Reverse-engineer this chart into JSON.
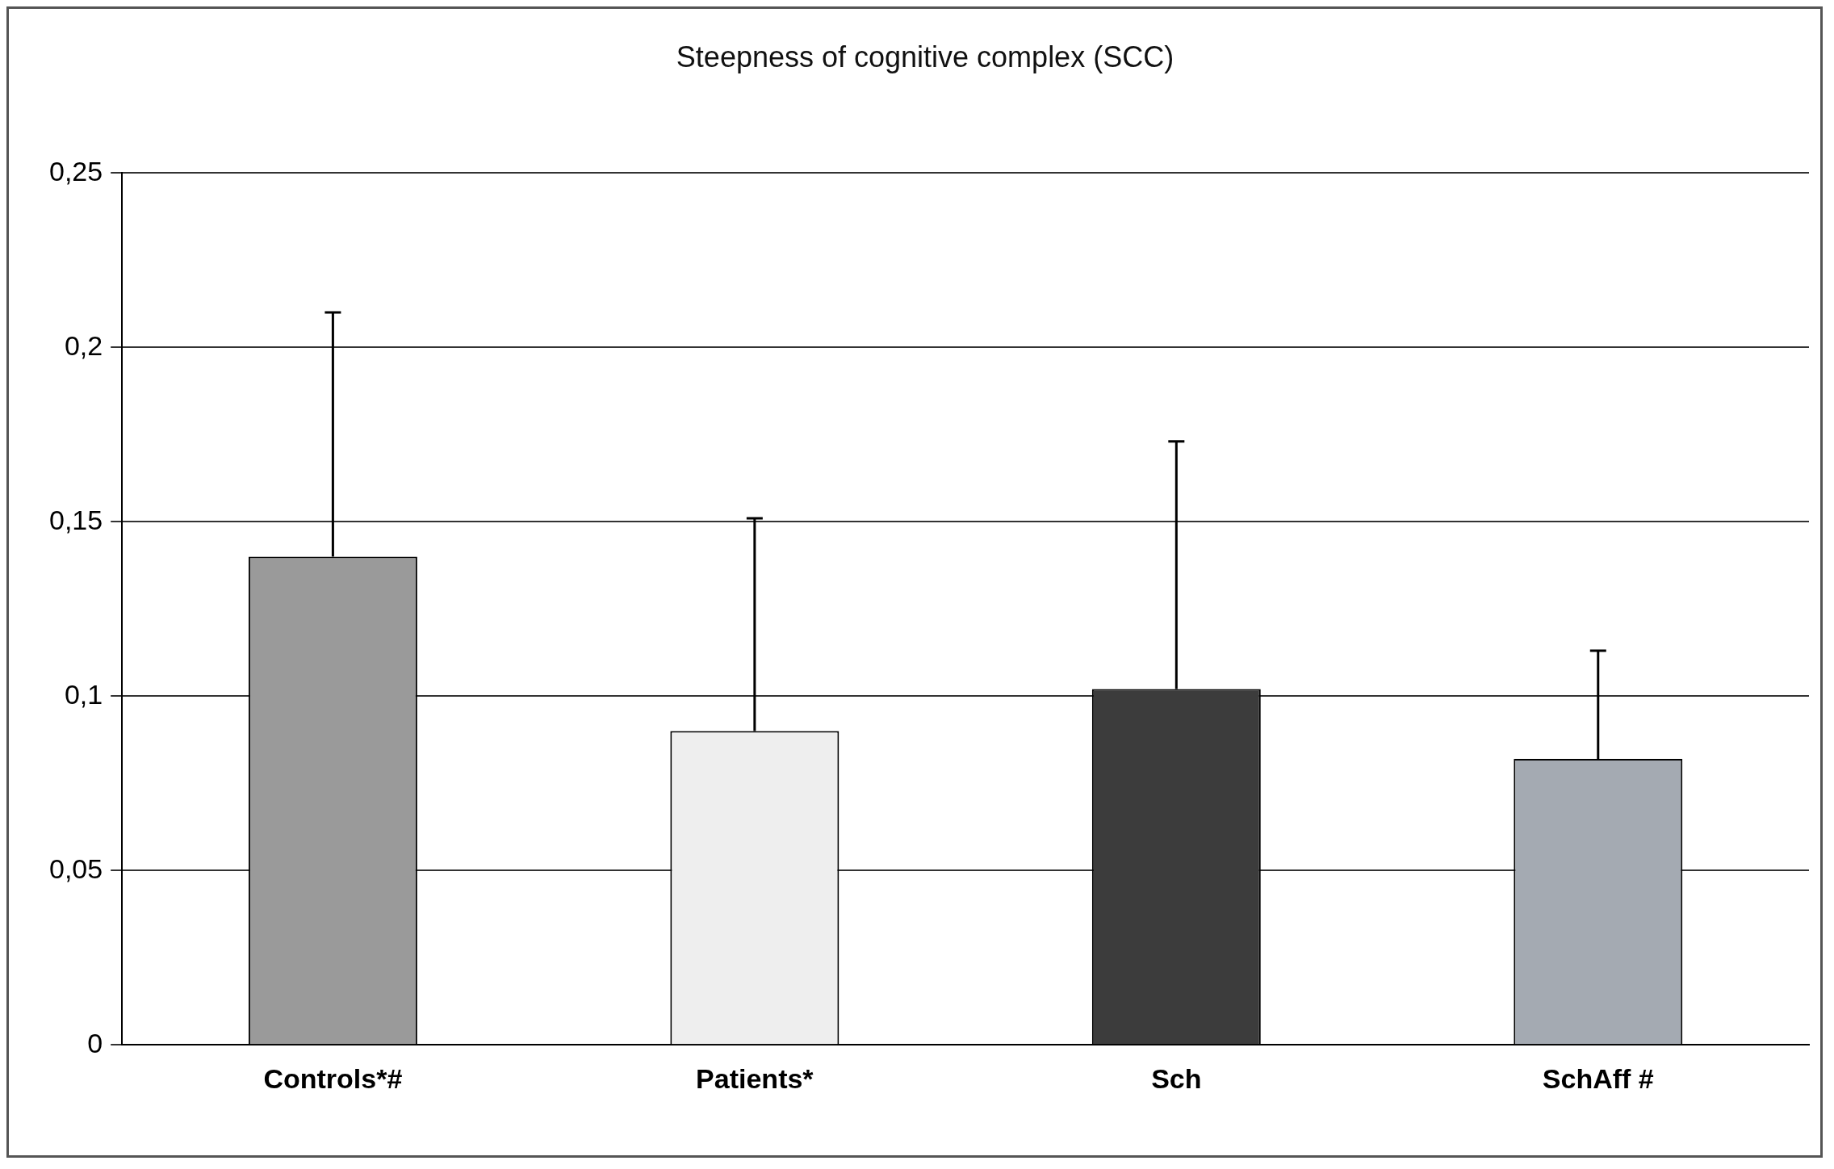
{
  "chart_data": {
    "type": "bar",
    "title": "Steepness of cognitive complex (SCC)",
    "categories": [
      "Controls*#",
      "Patients*",
      "Sch",
      "SchAff #"
    ],
    "values": [
      0.14,
      0.09,
      0.102,
      0.082
    ],
    "colors": [
      "#9a9a9a",
      "#eeeeee",
      "#3c3c3c",
      "#a4aab2"
    ],
    "errors": [
      [
        0.14,
        0.21
      ],
      [
        0.09,
        0.151
      ],
      [
        0.102,
        0.173
      ],
      [
        0.082,
        0.113
      ]
    ],
    "ylim": [
      0,
      0.25
    ],
    "yticks": [
      {
        "value": 0,
        "label": "0"
      },
      {
        "value": 0.05,
        "label": "0,05"
      },
      {
        "value": 0.1,
        "label": "0,1"
      },
      {
        "value": 0.15,
        "label": "0,15"
      },
      {
        "value": 0.2,
        "label": "0,2"
      },
      {
        "value": 0.25,
        "label": "0,25"
      }
    ],
    "grid": "y",
    "legend": false
  }
}
